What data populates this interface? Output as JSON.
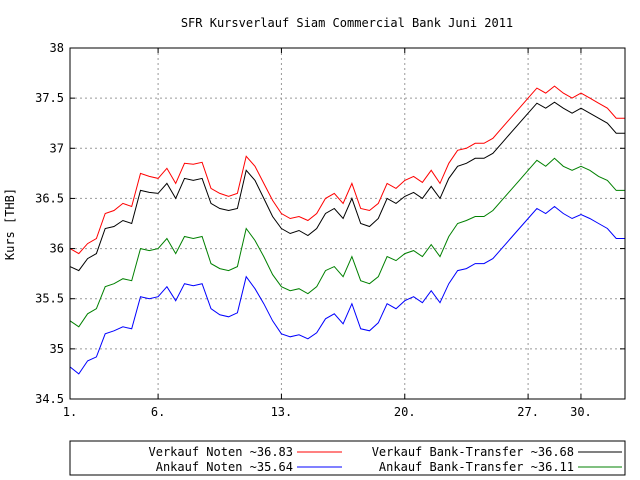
{
  "chart_data": {
    "type": "line",
    "title": "SFR Kursverlauf Siam Commercial Bank Juni 2011",
    "xlabel": "",
    "ylabel": "Kurs [THB]",
    "xlim": [
      1,
      32.5
    ],
    "ylim": [
      34.5,
      38
    ],
    "y_ticks": [
      "34.5",
      "35",
      "35.5",
      "36",
      "36.5",
      "37",
      "37.5",
      "38"
    ],
    "x_ticks": [
      {
        "label": "1.",
        "day": 1
      },
      {
        "label": "6.",
        "day": 6
      },
      {
        "label": "13.",
        "day": 13
      },
      {
        "label": "20.",
        "day": 20
      },
      {
        "label": "27.",
        "day": 27
      },
      {
        "label": "30.",
        "day": 30
      }
    ],
    "grid": true,
    "legend_position": "bottom",
    "legend": [
      {
        "label": "Verkauf Noten ~36.83",
        "color": "#ff0000",
        "series": 0
      },
      {
        "label": "Verkauf Bank-Transfer ~36.68",
        "color": "#000000",
        "series": 1
      },
      {
        "label": "Ankauf Noten ~35.64",
        "color": "#0000ff",
        "series": 3
      },
      {
        "label": "Ankauf Bank-Transfer ~36.11",
        "color": "#008000",
        "series": 2
      }
    ],
    "x": [
      1,
      1.5,
      2,
      2.5,
      3,
      3.5,
      4,
      4.5,
      5,
      5.5,
      6,
      6.5,
      7,
      7.5,
      8,
      8.5,
      9,
      9.5,
      10,
      10.5,
      11,
      11.5,
      12,
      12.5,
      13,
      13.5,
      14,
      14.5,
      15,
      15.5,
      16,
      16.5,
      17,
      17.5,
      18,
      18.5,
      19,
      19.5,
      20,
      20.5,
      21,
      21.5,
      22,
      22.5,
      23,
      23.5,
      24,
      24.5,
      25,
      25.5,
      26,
      26.5,
      27,
      27.5,
      28,
      28.5,
      29,
      29.5,
      30,
      30.5,
      31,
      31.5,
      32,
      32.5
    ],
    "series": [
      {
        "name": "Verkauf Noten",
        "color": "#ff0000",
        "values": [
          36.0,
          35.95,
          36.05,
          36.1,
          36.35,
          36.38,
          36.45,
          36.42,
          36.75,
          36.72,
          36.7,
          36.8,
          36.65,
          36.85,
          36.84,
          36.86,
          36.6,
          36.55,
          36.52,
          36.55,
          36.92,
          36.82,
          36.65,
          36.48,
          36.35,
          36.3,
          36.32,
          36.28,
          36.35,
          36.5,
          36.55,
          36.45,
          36.65,
          36.4,
          36.38,
          36.45,
          36.65,
          36.6,
          36.68,
          36.72,
          36.66,
          36.78,
          36.65,
          36.85,
          36.98,
          37.0,
          37.05,
          37.05,
          37.1,
          37.2,
          37.3,
          37.4,
          37.5,
          37.6,
          37.55,
          37.62,
          37.55,
          37.5,
          37.55,
          37.5,
          37.45,
          37.4,
          37.3,
          37.3
        ]
      },
      {
        "name": "Verkauf Bank-Transfer",
        "color": "#000000",
        "values": [
          35.82,
          35.78,
          35.9,
          35.95,
          36.2,
          36.22,
          36.28,
          36.25,
          36.58,
          36.56,
          36.55,
          36.65,
          36.5,
          36.7,
          36.68,
          36.7,
          36.45,
          36.4,
          36.38,
          36.4,
          36.78,
          36.68,
          36.5,
          36.32,
          36.2,
          36.15,
          36.18,
          36.13,
          36.2,
          36.35,
          36.4,
          36.3,
          36.5,
          36.25,
          36.22,
          36.3,
          36.5,
          36.45,
          36.52,
          36.56,
          36.5,
          36.62,
          36.5,
          36.7,
          36.82,
          36.85,
          36.9,
          36.9,
          36.95,
          37.05,
          37.15,
          37.25,
          37.35,
          37.45,
          37.4,
          37.46,
          37.4,
          37.35,
          37.4,
          37.35,
          37.3,
          37.25,
          37.15,
          37.15
        ]
      },
      {
        "name": "Ankauf Bank-Transfer",
        "color": "#008000",
        "values": [
          35.28,
          35.22,
          35.35,
          35.4,
          35.62,
          35.65,
          35.7,
          35.68,
          36.0,
          35.98,
          36.0,
          36.1,
          35.95,
          36.12,
          36.1,
          36.12,
          35.85,
          35.8,
          35.78,
          35.82,
          36.2,
          36.08,
          35.92,
          35.74,
          35.62,
          35.58,
          35.6,
          35.55,
          35.62,
          35.78,
          35.82,
          35.72,
          35.92,
          35.68,
          35.65,
          35.72,
          35.92,
          35.88,
          35.95,
          35.98,
          35.92,
          36.04,
          35.92,
          36.12,
          36.25,
          36.28,
          36.32,
          36.32,
          36.38,
          36.48,
          36.58,
          36.68,
          36.78,
          36.88,
          36.82,
          36.9,
          36.82,
          36.78,
          36.82,
          36.78,
          36.72,
          36.68,
          36.58,
          36.58
        ]
      },
      {
        "name": "Ankauf Noten",
        "color": "#0000ff",
        "values": [
          34.82,
          34.75,
          34.88,
          34.92,
          35.15,
          35.18,
          35.22,
          35.2,
          35.52,
          35.5,
          35.52,
          35.62,
          35.48,
          35.65,
          35.63,
          35.65,
          35.4,
          35.34,
          35.32,
          35.36,
          35.72,
          35.6,
          35.45,
          35.28,
          35.15,
          35.12,
          35.14,
          35.1,
          35.16,
          35.3,
          35.35,
          35.25,
          35.45,
          35.2,
          35.18,
          35.26,
          35.45,
          35.4,
          35.48,
          35.52,
          35.46,
          35.58,
          35.46,
          35.65,
          35.78,
          35.8,
          35.85,
          35.85,
          35.9,
          36.0,
          36.1,
          36.2,
          36.3,
          36.4,
          36.35,
          36.42,
          36.35,
          36.3,
          36.34,
          36.3,
          36.25,
          36.2,
          36.1,
          36.1
        ]
      }
    ]
  }
}
